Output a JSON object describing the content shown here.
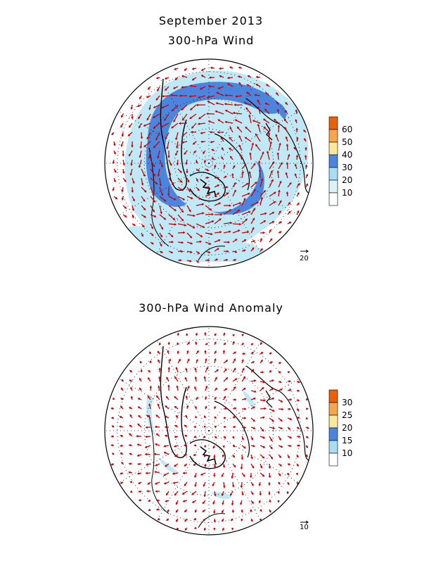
{
  "titles": {
    "main": "September 2013",
    "top_panel": "300-hPa Wind",
    "bottom_panel": "300-hPa Wind Anomaly"
  },
  "top_map": {
    "projection": "north polar stereographic",
    "shading": "wind speed",
    "colorbar": {
      "labels": [
        "60",
        "50",
        "40",
        "30",
        "20",
        "10"
      ],
      "colors": [
        "#e8620a",
        "#f6a64b",
        "#fce89a",
        "#4a86e0",
        "#a9ddf2",
        "#d9f3fa",
        "#ffffff"
      ]
    },
    "reference_vector_label": "20",
    "vector_color": "#cc0000"
  },
  "bottom_map": {
    "projection": "north polar stereographic",
    "shading": "wind anomaly speed",
    "colorbar": {
      "labels": [
        "30",
        "25",
        "20",
        "15",
        "10"
      ],
      "colors": [
        "#e8620a",
        "#f6a64b",
        "#fce89a",
        "#4a86e0",
        "#a9ddf2",
        "#ffffff"
      ]
    },
    "reference_vector_label": "10",
    "vector_color": "#cc0000"
  }
}
